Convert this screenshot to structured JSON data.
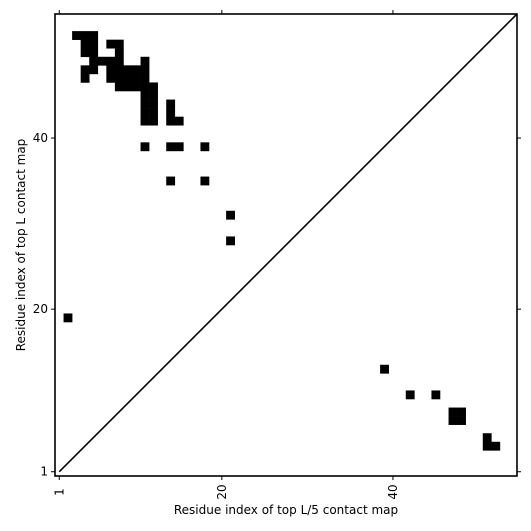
{
  "chart_data": {
    "type": "heatmap",
    "xlabel": "Residue index of top L/5 contact map",
    "ylabel": "Residue index of top L contact map",
    "xlim": [
      0.5,
      54.5
    ],
    "ylim": [
      0.5,
      54.5
    ],
    "x_ticks": [
      {
        "value": 1,
        "label": "1"
      },
      {
        "value": 20,
        "label": "20"
      },
      {
        "value": 40,
        "label": "40"
      }
    ],
    "y_ticks": [
      {
        "value": 1,
        "label": "1"
      },
      {
        "value": 20,
        "label": "20"
      },
      {
        "value": 40,
        "label": "40"
      }
    ],
    "diagonal": true,
    "grid": false,
    "cell_color": "#000000",
    "upper_contacts": [
      [
        3,
        52
      ],
      [
        4,
        52
      ],
      [
        5,
        52
      ],
      [
        4,
        51
      ],
      [
        5,
        51
      ],
      [
        7,
        51
      ],
      [
        8,
        51
      ],
      [
        4,
        50
      ],
      [
        5,
        50
      ],
      [
        8,
        50
      ],
      [
        5,
        49
      ],
      [
        6,
        49
      ],
      [
        7,
        49
      ],
      [
        8,
        49
      ],
      [
        11,
        49
      ],
      [
        4,
        48
      ],
      [
        5,
        48
      ],
      [
        7,
        48
      ],
      [
        8,
        48
      ],
      [
        9,
        48
      ],
      [
        10,
        48
      ],
      [
        11,
        48
      ],
      [
        4,
        47
      ],
      [
        7,
        47
      ],
      [
        8,
        47
      ],
      [
        9,
        47
      ],
      [
        10,
        47
      ],
      [
        11,
        47
      ],
      [
        8,
        46
      ],
      [
        9,
        46
      ],
      [
        10,
        46
      ],
      [
        11,
        46
      ],
      [
        12,
        46
      ],
      [
        11,
        45
      ],
      [
        12,
        45
      ],
      [
        11,
        44
      ],
      [
        12,
        44
      ],
      [
        14,
        44
      ],
      [
        11,
        43
      ],
      [
        12,
        43
      ],
      [
        14,
        43
      ],
      [
        11,
        42
      ],
      [
        12,
        42
      ],
      [
        14,
        42
      ],
      [
        15,
        42
      ],
      [
        11,
        39
      ],
      [
        14,
        39
      ],
      [
        15,
        39
      ],
      [
        18,
        39
      ],
      [
        14,
        35
      ],
      [
        18,
        35
      ],
      [
        21,
        31
      ],
      [
        21,
        28
      ],
      [
        2,
        19
      ]
    ],
    "lower_contacts": [
      [
        39,
        13
      ],
      [
        42,
        10
      ],
      [
        45,
        10
      ],
      [
        47,
        8
      ],
      [
        48,
        8
      ],
      [
        47,
        7
      ],
      [
        48,
        7
      ],
      [
        51,
        5
      ],
      [
        51,
        4
      ],
      [
        52,
        4
      ]
    ]
  }
}
